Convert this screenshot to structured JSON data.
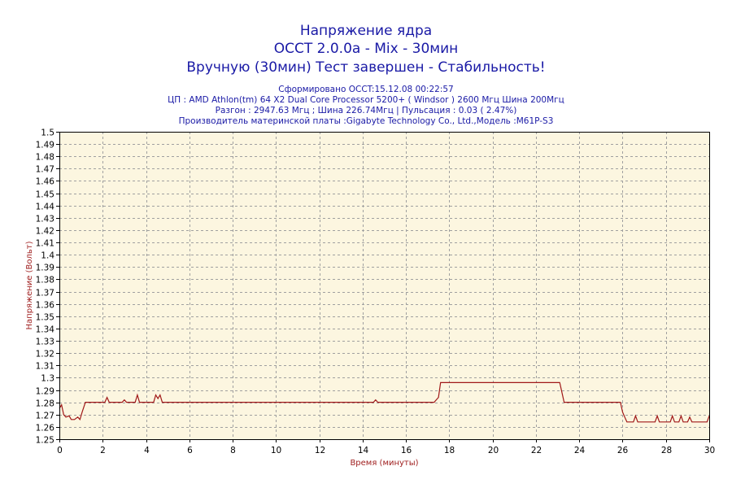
{
  "header": {
    "title_line1": "Напряжение ядра",
    "title_line2": "OCCT 2.0.0a - Mix - 30мин",
    "title_line3": "Вручную (30мин) Тест завершен - Стабильность!",
    "info_line1": "Сформировано OCCT:15.12.08 00:22:57",
    "info_line2": "ЦП : AMD Athlon(tm) 64 X2 Dual Core Processor 5200+ ( Windsor ) 2600 Мгц Шина 200Мгц",
    "info_line3": "Разгон : 2947.63 Мгц ; Шина 226.74Мгц | Пульсация : 0.03 ( 2.47%)",
    "info_line4": "Производитель материнской платы :Gigabyte Technology Co., Ltd.,Модель :M61P-S3"
  },
  "colors": {
    "title": "#1a1aa6",
    "plot_background": "#fcf6e0",
    "grid": "#a0a0a0",
    "series": "#a01818",
    "axis_label": "#a02020"
  },
  "chart_data": {
    "type": "line",
    "xlabel": "Время (минуты)",
    "ylabel": "Напряжение (Вольт)",
    "xlim": [
      0,
      30
    ],
    "ylim": [
      1.25,
      1.5
    ],
    "x_ticks": [
      0,
      2,
      4,
      6,
      8,
      10,
      12,
      14,
      16,
      18,
      20,
      22,
      24,
      26,
      28,
      30
    ],
    "y_ticks": [
      "1.25",
      "1.26",
      "1.27",
      "1.28",
      "1.29",
      "1.3",
      "1.31",
      "1.32",
      "1.33",
      "1.34",
      "1.35",
      "1.36",
      "1.37",
      "1.38",
      "1.39",
      "1.4",
      "1.41",
      "1.42",
      "1.43",
      "1.44",
      "1.45",
      "1.46",
      "1.47",
      "1.48",
      "1.49",
      "1.5"
    ],
    "grid": true,
    "legend": "none",
    "series": [
      {
        "x": [
          0,
          0.1,
          0.2,
          0.3,
          0.45,
          0.55,
          0.7,
          0.85,
          0.95,
          1.05,
          1.2,
          2.1,
          2.2,
          2.3,
          2.4,
          2.9,
          3.0,
          3.1,
          3.5,
          3.6,
          3.7,
          4.35,
          4.45,
          4.55,
          4.65,
          4.75,
          5.0,
          14.5,
          14.6,
          14.7,
          17.3,
          17.4,
          17.5,
          17.6,
          23.1,
          23.3,
          25.9,
          26.0,
          26.1,
          26.2,
          26.3,
          26.5,
          26.6,
          26.7,
          26.8,
          27.0,
          27.3,
          27.5,
          27.6,
          27.7,
          27.8,
          28.0,
          28.2,
          28.3,
          28.4,
          28.5,
          28.6,
          28.7,
          28.8,
          28.9,
          29.0,
          29.1,
          29.2,
          29.3,
          29.4,
          29.6,
          29.7,
          29.9,
          30.0
        ],
        "y": [
          1.275,
          1.278,
          1.27,
          1.268,
          1.269,
          1.266,
          1.266,
          1.268,
          1.266,
          1.272,
          1.28,
          1.28,
          1.284,
          1.28,
          1.28,
          1.28,
          1.282,
          1.28,
          1.28,
          1.286,
          1.28,
          1.28,
          1.286,
          1.283,
          1.286,
          1.28,
          1.28,
          1.28,
          1.282,
          1.28,
          1.28,
          1.282,
          1.284,
          1.296,
          1.296,
          1.28,
          1.28,
          1.272,
          1.268,
          1.264,
          1.264,
          1.264,
          1.269,
          1.264,
          1.264,
          1.264,
          1.264,
          1.264,
          1.269,
          1.264,
          1.264,
          1.264,
          1.264,
          1.269,
          1.264,
          1.264,
          1.264,
          1.269,
          1.264,
          1.264,
          1.264,
          1.268,
          1.264,
          1.264,
          1.264,
          1.264,
          1.264,
          1.264,
          1.269
        ]
      }
    ]
  }
}
